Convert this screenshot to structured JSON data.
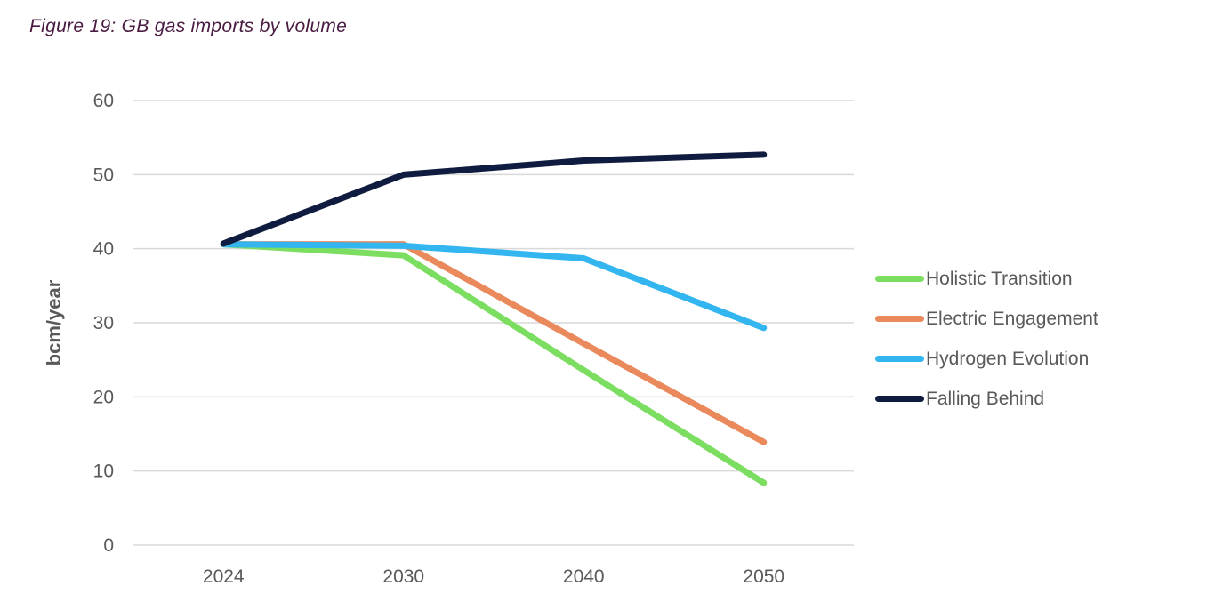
{
  "page": {
    "title": "Figure 19: GB gas imports by volume"
  },
  "chart_data": {
    "type": "line",
    "title": "Figure 19: GB gas imports by volume",
    "xlabel": "",
    "ylabel": "bcm/year",
    "categories": [
      "2024",
      "2030",
      "2040",
      "2050"
    ],
    "series": [
      {
        "name": "Holistic Transition",
        "color": "#7CDE61",
        "values": [
          40.6,
          39.1,
          23.6,
          8.4
        ]
      },
      {
        "name": "Electric Engagement",
        "color": "#EA8A5C",
        "values": [
          40.6,
          40.6,
          27.2,
          13.9
        ]
      },
      {
        "name": "Hydrogen Evolution",
        "color": "#33B6F0",
        "values": [
          40.6,
          40.4,
          38.7,
          29.3
        ]
      },
      {
        "name": "Falling Behind",
        "color": "#101C3F",
        "values": [
          40.7,
          50.0,
          51.9,
          52.7
        ]
      }
    ],
    "ylim": [
      0,
      60
    ],
    "ytick_step": 10,
    "yticks": [
      0,
      10,
      20,
      30,
      40,
      50,
      60
    ],
    "grid": "horizontal",
    "legend_position": "right"
  },
  "styles": {
    "title_color": "#4a1b41",
    "axis_text_color": "#595959",
    "gridline_color": "#d9d9d9",
    "background_color": "#ffffff"
  }
}
